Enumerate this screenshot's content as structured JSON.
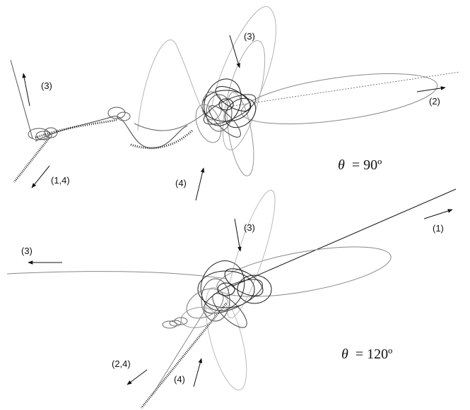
{
  "panels": [
    {
      "angle_label": "θ = 90º",
      "angle_symbol": "θ",
      "angle_value": "= 90º",
      "arrows": [
        {
          "label": "(3)"
        },
        {
          "label": "(3)"
        },
        {
          "label": "(2)"
        },
        {
          "label": "(1,4)"
        },
        {
          "label": "(4)"
        }
      ]
    },
    {
      "angle_label": "θ = 120º",
      "angle_symbol": "θ",
      "angle_value": "= 120º",
      "arrows": [
        {
          "label": "(3)"
        },
        {
          "label": "(1)"
        },
        {
          "label": "(3)"
        },
        {
          "label": "(2,4)"
        },
        {
          "label": "(4)"
        }
      ]
    }
  ],
  "colors": {
    "ink": "#111111",
    "trajectory_dark": "#1a1a1a",
    "trajectory_mid": "#6e6e6e",
    "trajectory_light": "#b4b4b4"
  }
}
